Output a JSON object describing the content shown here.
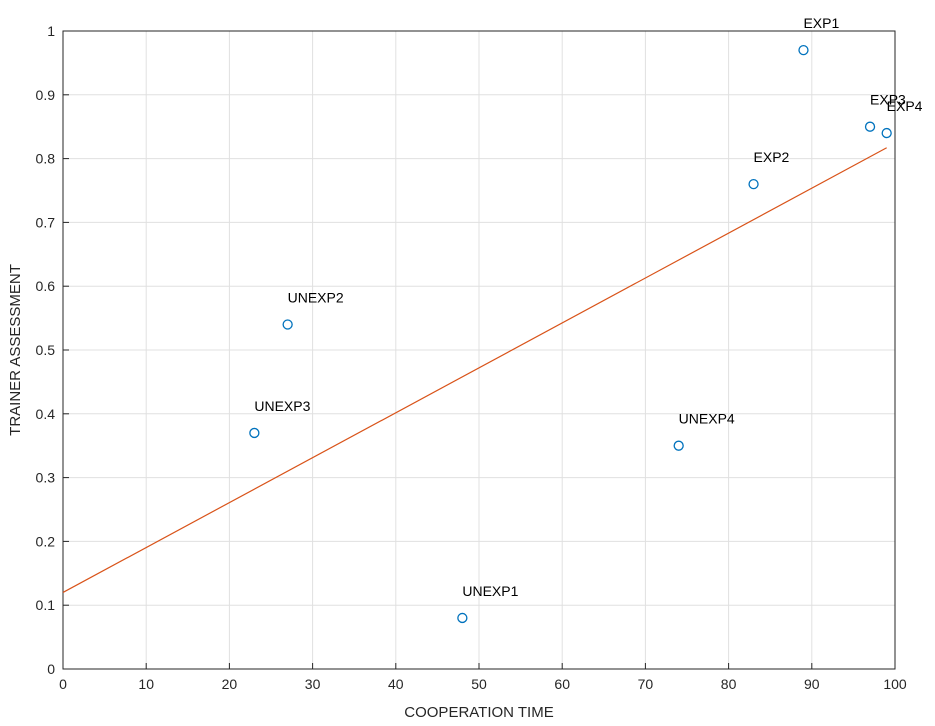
{
  "chart_data": {
    "type": "scatter",
    "title": "",
    "xlabel": "COOPERATION TIME",
    "ylabel": "TRAINER ASSESSMENT",
    "xlim": [
      0,
      100
    ],
    "ylim": [
      0,
      1
    ],
    "xticks": [
      0,
      10,
      20,
      30,
      40,
      50,
      60,
      70,
      80,
      90,
      100
    ],
    "yticks": [
      0,
      0.1,
      0.2,
      0.3,
      0.4,
      0.5,
      0.6,
      0.7,
      0.8,
      0.9,
      1
    ],
    "grid": true,
    "points": [
      {
        "label": "EXP1",
        "x": 89,
        "y": 0.97
      },
      {
        "label": "EXP2",
        "x": 83,
        "y": 0.76
      },
      {
        "label": "EXP3",
        "x": 97,
        "y": 0.85
      },
      {
        "label": "EXP4",
        "x": 99,
        "y": 0.84
      },
      {
        "label": "UNEXP1",
        "x": 48,
        "y": 0.08
      },
      {
        "label": "UNEXP2",
        "x": 27,
        "y": 0.54
      },
      {
        "label": "UNEXP3",
        "x": 23,
        "y": 0.37
      },
      {
        "label": "UNEXP4",
        "x": 74,
        "y": 0.35
      }
    ],
    "fit_line": {
      "x": [
        0,
        99
      ],
      "y": [
        0.12,
        0.817
      ]
    },
    "colors": {
      "marker": "#0072BD",
      "fit_line": "#D95319",
      "grid": "#e0e0e0",
      "axis": "#262626"
    }
  }
}
